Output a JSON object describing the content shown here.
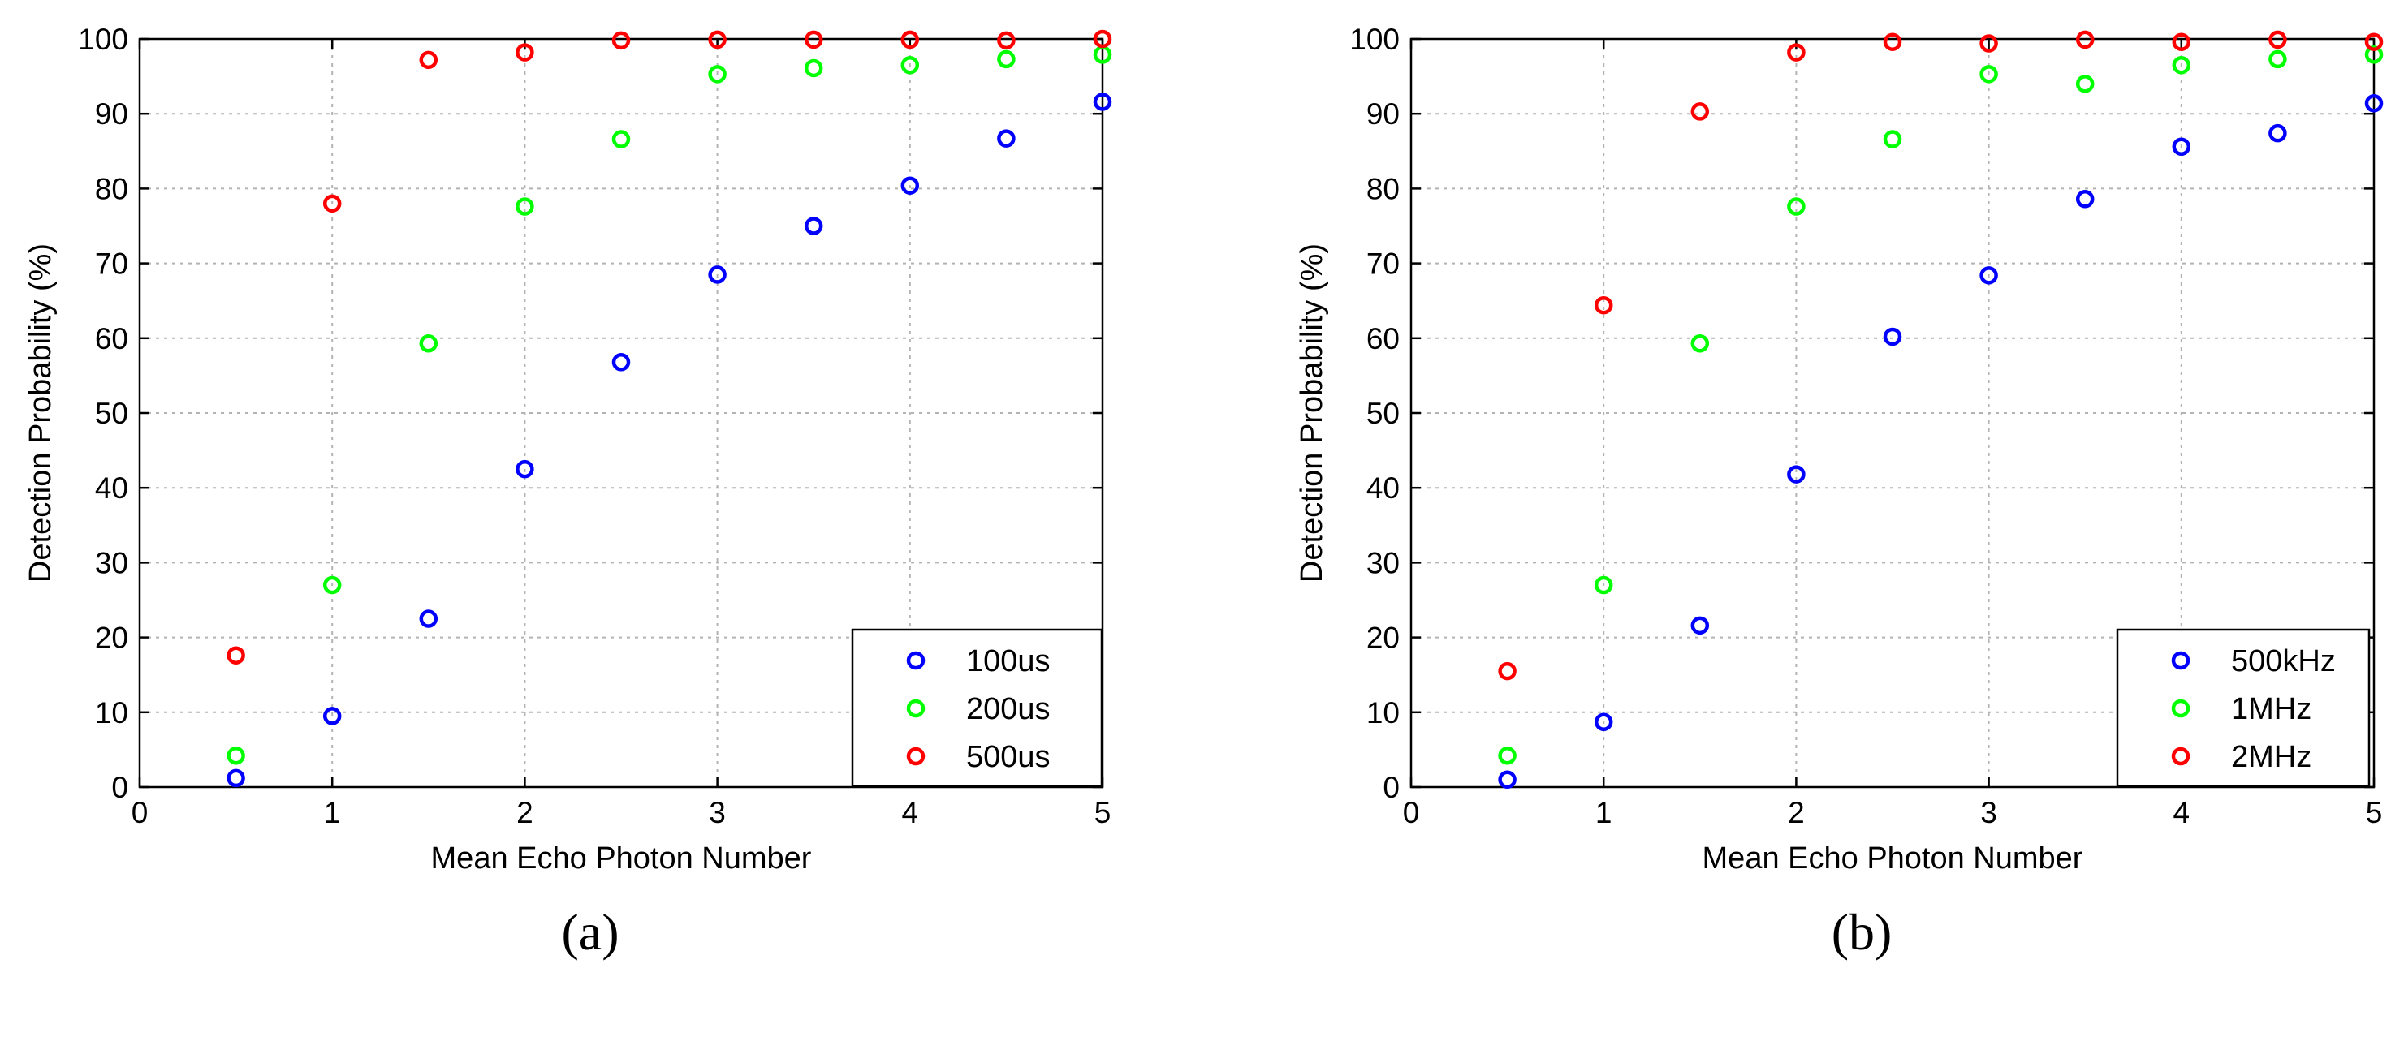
{
  "chart_data": [
    {
      "type": "scatter",
      "title": "",
      "caption": "(a)",
      "xlabel": "Mean Echo Photon Number",
      "ylabel": "Detection Probability (%)",
      "xlim": [
        0,
        5
      ],
      "ylim": [
        0,
        100
      ],
      "xticks": [
        0,
        1,
        2,
        3,
        4,
        5
      ],
      "yticks": [
        0,
        10,
        20,
        30,
        40,
        50,
        60,
        70,
        80,
        90,
        100
      ],
      "grid": true,
      "legend_position": "bottom-right",
      "x": [
        0.5,
        1,
        1.5,
        2,
        2.5,
        3,
        3.5,
        4,
        4.5,
        5
      ],
      "series": [
        {
          "name": "100us",
          "color": "#0000ff",
          "values": [
            1.2,
            9.5,
            22.5,
            42.5,
            56.8,
            68.5,
            75.0,
            80.4,
            86.7,
            91.6
          ]
        },
        {
          "name": "200us",
          "color": "#00ff00",
          "values": [
            4.2,
            27.0,
            59.3,
            77.6,
            86.6,
            95.3,
            96.1,
            96.5,
            97.3,
            97.9
          ]
        },
        {
          "name": "500us",
          "color": "#ff0000",
          "values": [
            17.6,
            78.0,
            97.2,
            98.2,
            99.8,
            99.9,
            99.9,
            99.9,
            99.8,
            100.0
          ]
        }
      ]
    },
    {
      "type": "scatter",
      "title": "",
      "caption": "(b)",
      "xlabel": "Mean Echo Photon Number",
      "ylabel": "Detection Probability (%)",
      "xlim": [
        0,
        5
      ],
      "ylim": [
        0,
        100
      ],
      "xticks": [
        0,
        1,
        2,
        3,
        4,
        5
      ],
      "yticks": [
        0,
        10,
        20,
        30,
        40,
        50,
        60,
        70,
        80,
        90,
        100
      ],
      "grid": true,
      "legend_position": "bottom-right",
      "x": [
        0.5,
        1,
        1.5,
        2,
        2.5,
        3,
        3.5,
        4,
        4.5,
        5
      ],
      "series": [
        {
          "name": "500kHz",
          "color": "#0000ff",
          "values": [
            1.0,
            8.7,
            21.6,
            41.8,
            60.2,
            68.4,
            78.6,
            85.6,
            87.4,
            91.4
          ]
        },
        {
          "name": "1MHz",
          "color": "#00ff00",
          "values": [
            4.2,
            27.0,
            59.3,
            77.6,
            86.6,
            95.3,
            94.0,
            96.5,
            97.3,
            97.9
          ]
        },
        {
          "name": "2MHz",
          "color": "#ff0000",
          "values": [
            15.5,
            64.4,
            90.3,
            98.2,
            99.6,
            99.4,
            99.9,
            99.6,
            99.9,
            99.6
          ]
        }
      ]
    }
  ]
}
